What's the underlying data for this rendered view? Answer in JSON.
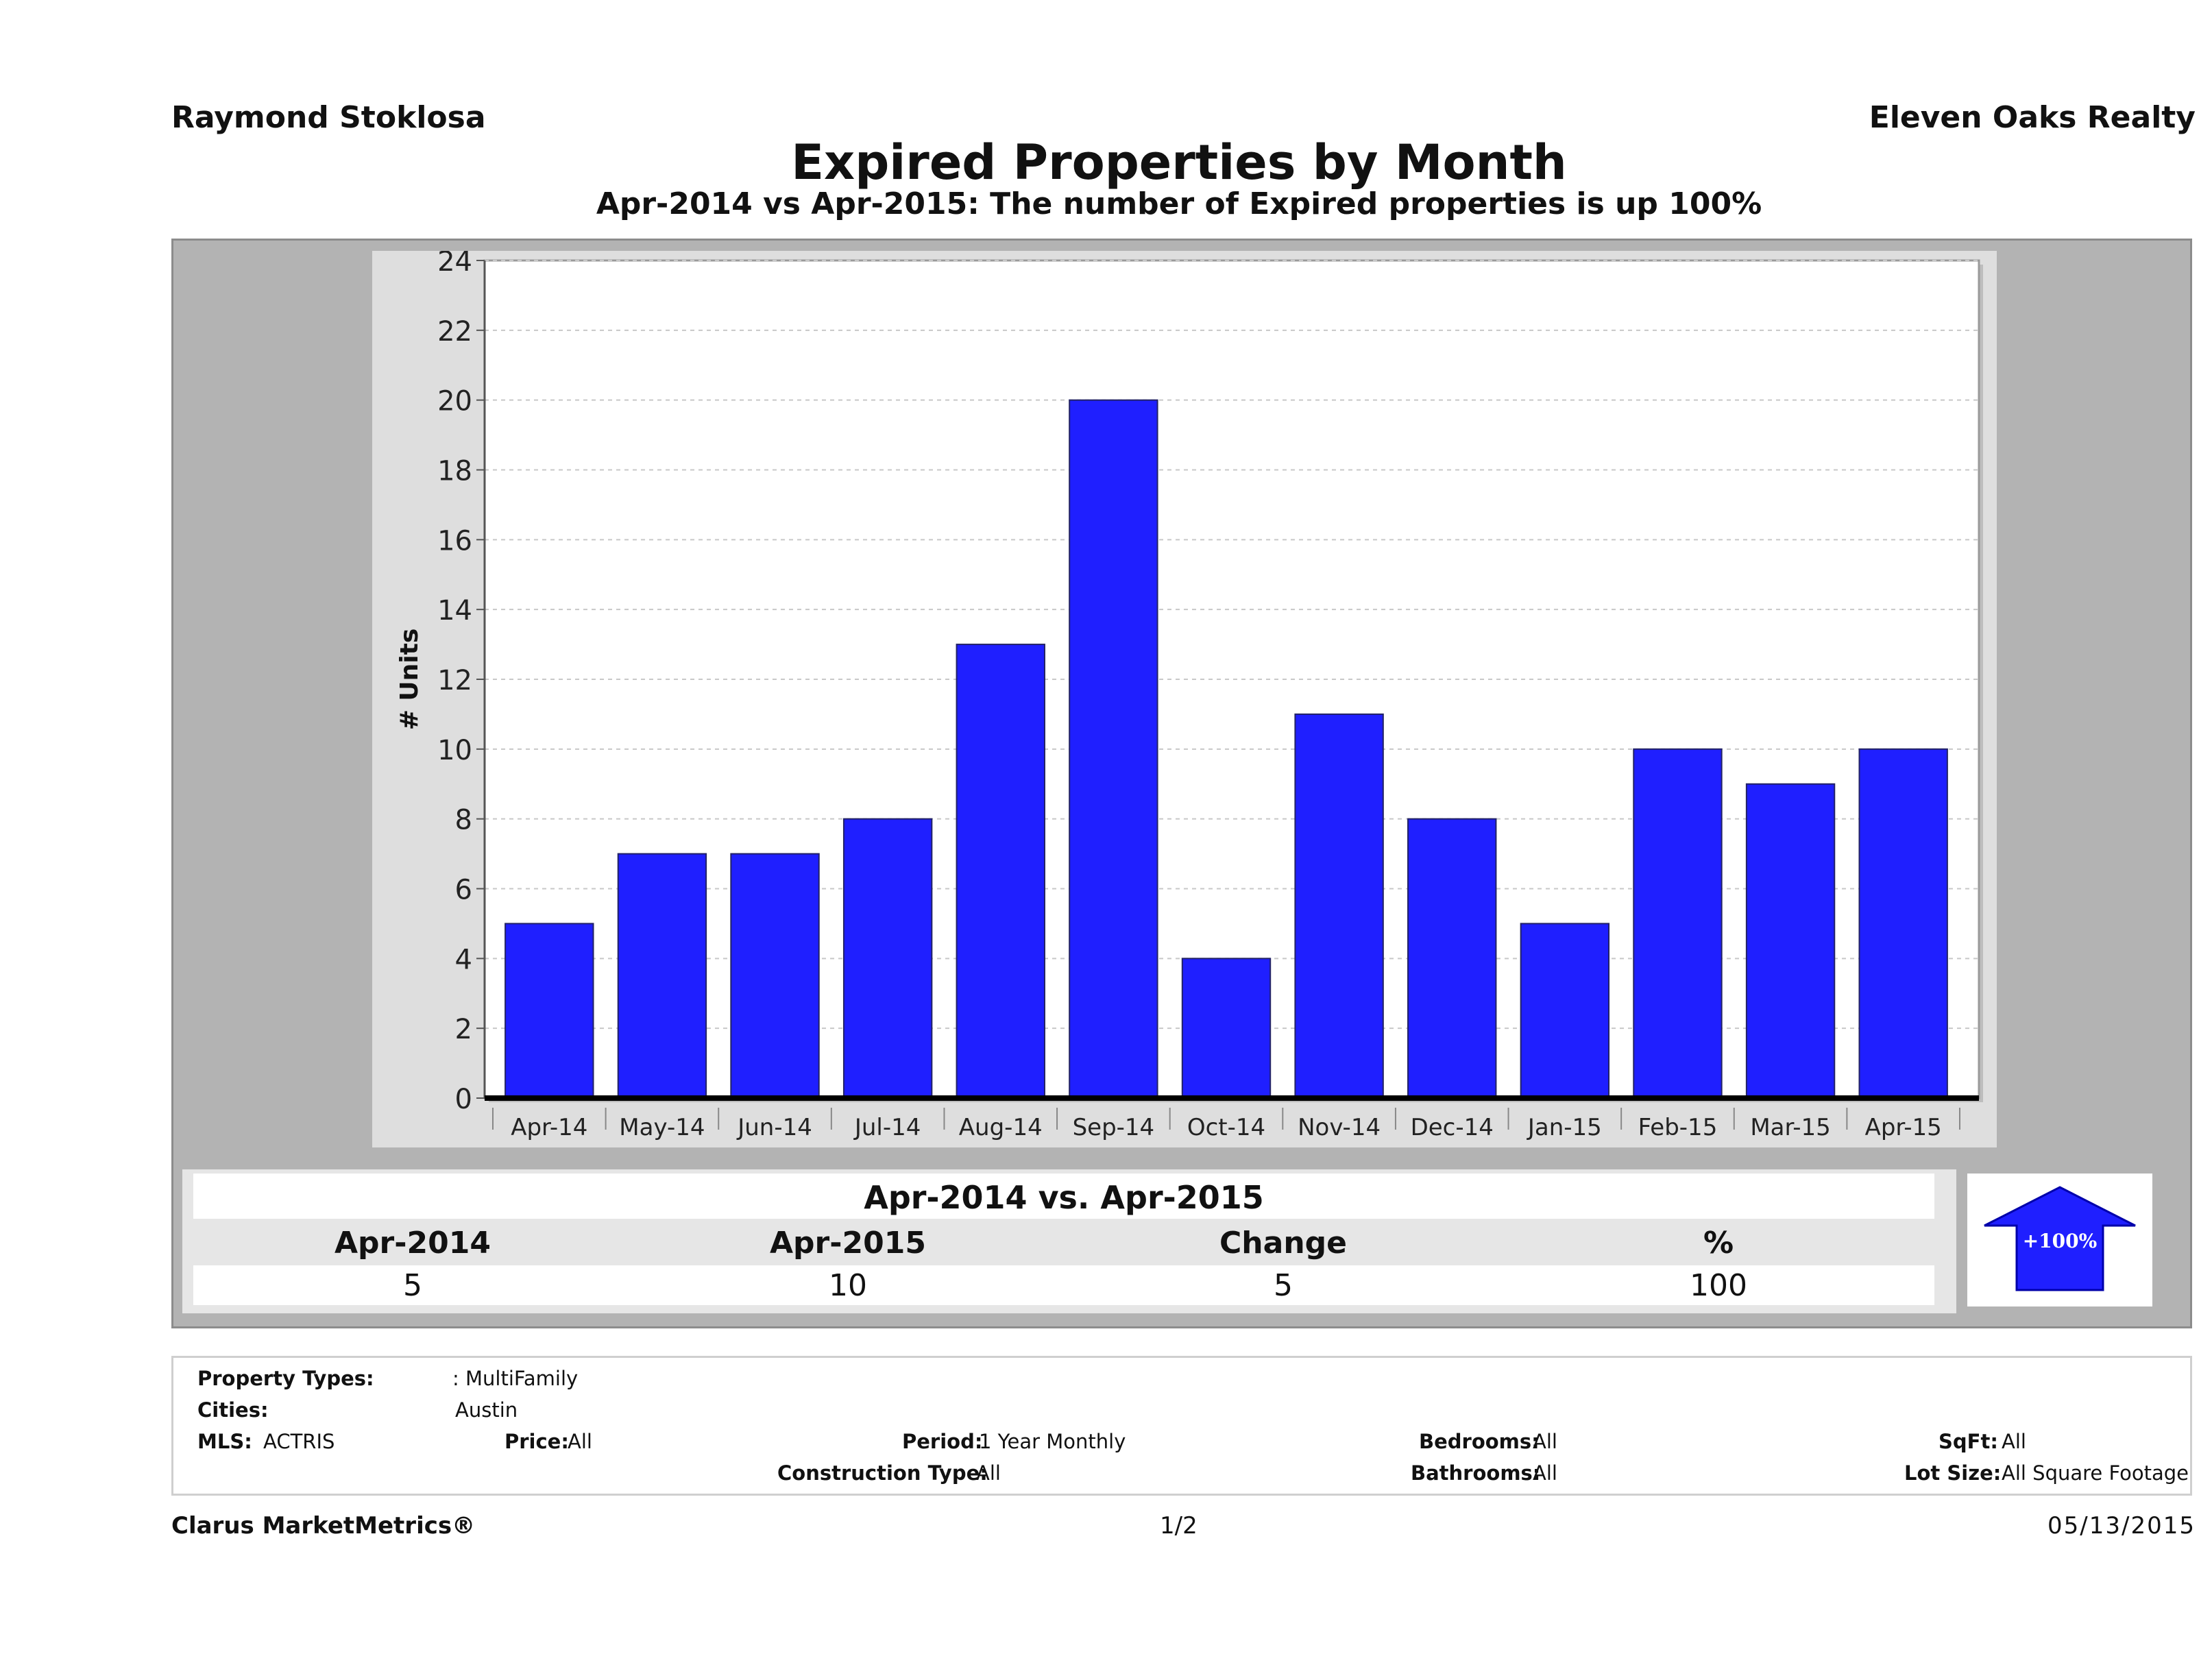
{
  "header": {
    "agent": "Raymond Stoklosa",
    "company": "Eleven Oaks Realty",
    "title": "Expired Properties by Month",
    "subtitle": "Apr-2014 vs Apr-2015: The number of Expired  properties is up 100%"
  },
  "chart_data": {
    "type": "bar",
    "categories": [
      "Apr-14",
      "May-14",
      "Jun-14",
      "Jul-14",
      "Aug-14",
      "Sep-14",
      "Oct-14",
      "Nov-14",
      "Dec-14",
      "Jan-15",
      "Feb-15",
      "Mar-15",
      "Apr-15"
    ],
    "values": [
      5,
      7,
      7,
      8,
      13,
      20,
      4,
      11,
      8,
      5,
      10,
      9,
      10
    ],
    "ylabel": "# Units",
    "ylim": [
      0,
      24
    ],
    "yticks": [
      0,
      2,
      4,
      6,
      8,
      10,
      12,
      14,
      16,
      18,
      20,
      22,
      24
    ],
    "grid": true,
    "bar_color": "#1f1fff"
  },
  "summary": {
    "heading": "Apr-2014 vs. Apr-2015",
    "columns": [
      "Apr-2014",
      "Apr-2015",
      "Change",
      "%"
    ],
    "values": [
      "5",
      "10",
      "5",
      "100"
    ],
    "badge": "+100%",
    "badge_direction": "up",
    "badge_color": "#1f1fff"
  },
  "filters": {
    "property_types_label": "Property Types:",
    "property_types_value": ": MultiFamily",
    "cities_label": "Cities:",
    "cities_value": "Austin",
    "mls_label": "MLS:",
    "mls_value": "ACTRIS",
    "price_label": "Price:",
    "price_value": "All",
    "period_label": "Period:",
    "period_value": "1 Year Monthly",
    "construction_label": "Construction Type:",
    "construction_value": "All",
    "bedrooms_label": "Bedrooms:",
    "bedrooms_value": "All",
    "bathrooms_label": "Bathrooms:",
    "bathrooms_value": "All",
    "sqft_label": "SqFt:",
    "sqft_value": "All",
    "lotsize_label": "Lot Size:",
    "lotsize_value": "All Square Footage"
  },
  "footer": {
    "brand": "Clarus MarketMetrics®",
    "page": "1/2",
    "date": "05/13/2015"
  }
}
